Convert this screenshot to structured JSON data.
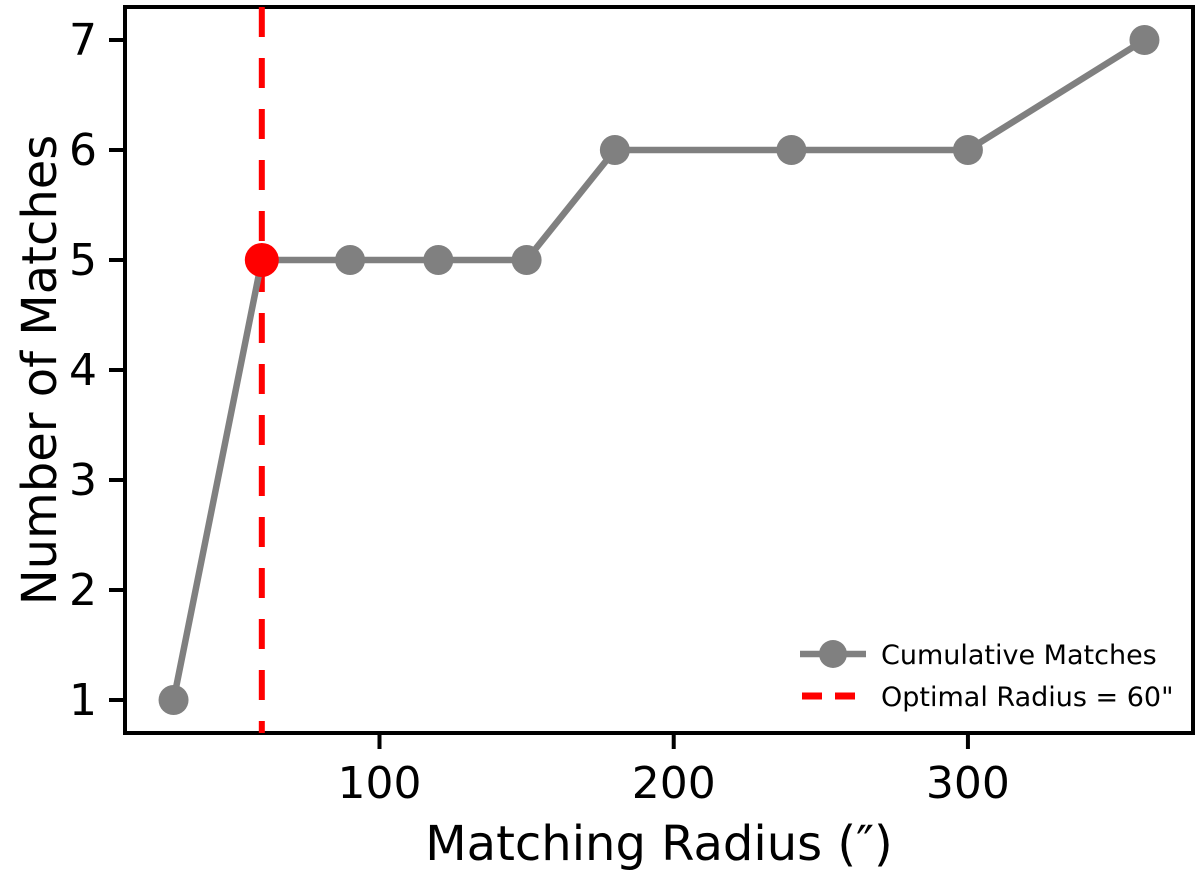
{
  "chart_data": {
    "type": "line",
    "title": "",
    "xlabel": "Matching Radius (″)",
    "ylabel": "Number of Matches",
    "series": [
      {
        "name": "Cumulative Matches",
        "color": "#808080",
        "x": [
          30,
          60,
          90,
          120,
          150,
          180,
          240,
          300,
          360
        ],
        "y": [
          1,
          5,
          5,
          5,
          5,
          6,
          6,
          6,
          7
        ]
      }
    ],
    "highlight_point": {
      "x": 60,
      "y": 5,
      "color": "#ff0000"
    },
    "vline": {
      "x": 60,
      "color": "#ff0000",
      "style": "dashed",
      "label": "Optimal Radius = 60\""
    },
    "xlim": [
      13.5,
      376.5
    ],
    "ylim": [
      0.7,
      7.3
    ],
    "x_ticks": [
      100,
      200,
      300
    ],
    "y_ticks": [
      1,
      2,
      3,
      4,
      5,
      6,
      7
    ],
    "grid": false,
    "axis_color": "#000000",
    "legend": {
      "position": "lower right",
      "entries": [
        {
          "label": "Cumulative Matches",
          "marker": "circle-line",
          "color": "#808080"
        },
        {
          "label": "Optimal Radius = 60\"",
          "marker": "dashed-line",
          "color": "#ff0000"
        }
      ]
    }
  }
}
